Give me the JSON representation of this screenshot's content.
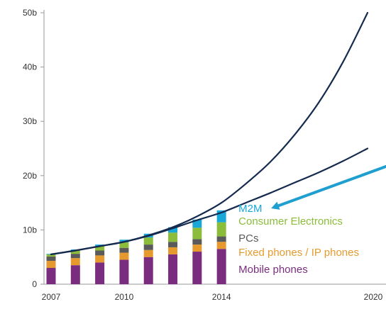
{
  "colors": {
    "background": "#ffffff",
    "axis": "#9a9a9a",
    "tick_text": "#333333",
    "curve": "#152a4f",
    "arrow": "#1e9fd0",
    "m2m": "#19a7d8",
    "consumer_electronics": "#8bbd3a",
    "pcs": "#5a5a5a",
    "fixed_phones": "#e69a2e",
    "mobile_phones": "#7a2d7e"
  },
  "chart_data": {
    "type": "bar",
    "x_range": [
      2007,
      2020
    ],
    "ylim": [
      0,
      50
    ],
    "y_ticks": [
      {
        "value": 0,
        "label": "0"
      },
      {
        "value": 10,
        "label": "10b"
      },
      {
        "value": 20,
        "label": "20b"
      },
      {
        "value": 30,
        "label": "30b"
      },
      {
        "value": 40,
        "label": "40b"
      },
      {
        "value": 50,
        "label": "50b"
      }
    ],
    "x_ticks": [
      {
        "value": 2007,
        "label": "2007"
      },
      {
        "value": 2010,
        "label": "2010"
      },
      {
        "value": 2014,
        "label": "2014"
      },
      {
        "value": 2020,
        "label": "2020"
      }
    ],
    "categories": [
      2007,
      2008,
      2009,
      2010,
      2011,
      2012,
      2013,
      2014
    ],
    "series": [
      {
        "name": "Mobile phones",
        "color_key": "mobile_phones",
        "values": [
          3.0,
          3.5,
          4.0,
          4.5,
          5.0,
          5.5,
          6.0,
          6.5
        ]
      },
      {
        "name": "Fixed phones / IP phones",
        "color_key": "fixed_phones",
        "values": [
          1.3,
          1.3,
          1.3,
          1.3,
          1.3,
          1.3,
          1.3,
          1.3
        ]
      },
      {
        "name": "PCs",
        "color_key": "pcs",
        "values": [
          0.8,
          0.8,
          0.9,
          0.9,
          1.0,
          1.0,
          1.0,
          1.0
        ]
      },
      {
        "name": "Consumer Electronics",
        "color_key": "consumer_electronics",
        "values": [
          0.4,
          0.6,
          0.8,
          1.0,
          1.3,
          1.7,
          2.1,
          2.6
        ]
      },
      {
        "name": "M2M",
        "color_key": "m2m",
        "values": [
          0.1,
          0.2,
          0.3,
          0.5,
          0.7,
          1.0,
          1.5,
          2.2
        ]
      }
    ],
    "lines": [
      {
        "points": [
          [
            2007,
            5.5
          ],
          [
            2008,
            6.2
          ],
          [
            2009,
            7.0
          ],
          [
            2010,
            7.8
          ],
          [
            2011,
            9.0
          ],
          [
            2012,
            10.5
          ],
          [
            2013,
            12.5
          ],
          [
            2014,
            15.0
          ],
          [
            2015,
            18.5
          ],
          [
            2016,
            22.5
          ],
          [
            2017,
            27.5
          ],
          [
            2018,
            33.5
          ],
          [
            2019,
            41.0
          ],
          [
            2020,
            50.0
          ]
        ]
      },
      {
        "points": [
          [
            2007,
            5.5
          ],
          [
            2008,
            6.2
          ],
          [
            2009,
            7.0
          ],
          [
            2010,
            7.8
          ],
          [
            2011,
            8.9
          ],
          [
            2012,
            10.3
          ],
          [
            2013,
            11.8
          ],
          [
            2014,
            13.2
          ],
          [
            2015,
            15.0
          ],
          [
            2016,
            16.8
          ],
          [
            2017,
            18.7
          ],
          [
            2018,
            20.6
          ],
          [
            2019,
            22.7
          ],
          [
            2020,
            25.0
          ]
        ]
      }
    ],
    "legend": {
      "placement": "right of 2014 bar",
      "entries": [
        {
          "label": "M2M",
          "color_key": "m2m"
        },
        {
          "label": "Consumer Electronics",
          "color_key": "consumer_electronics"
        },
        {
          "label": "PCs",
          "color_key": "pcs"
        },
        {
          "label": "Fixed phones / IP phones",
          "color_key": "fixed_phones"
        },
        {
          "label": "Mobile phones",
          "color_key": "mobile_phones"
        }
      ]
    },
    "grid": false
  }
}
